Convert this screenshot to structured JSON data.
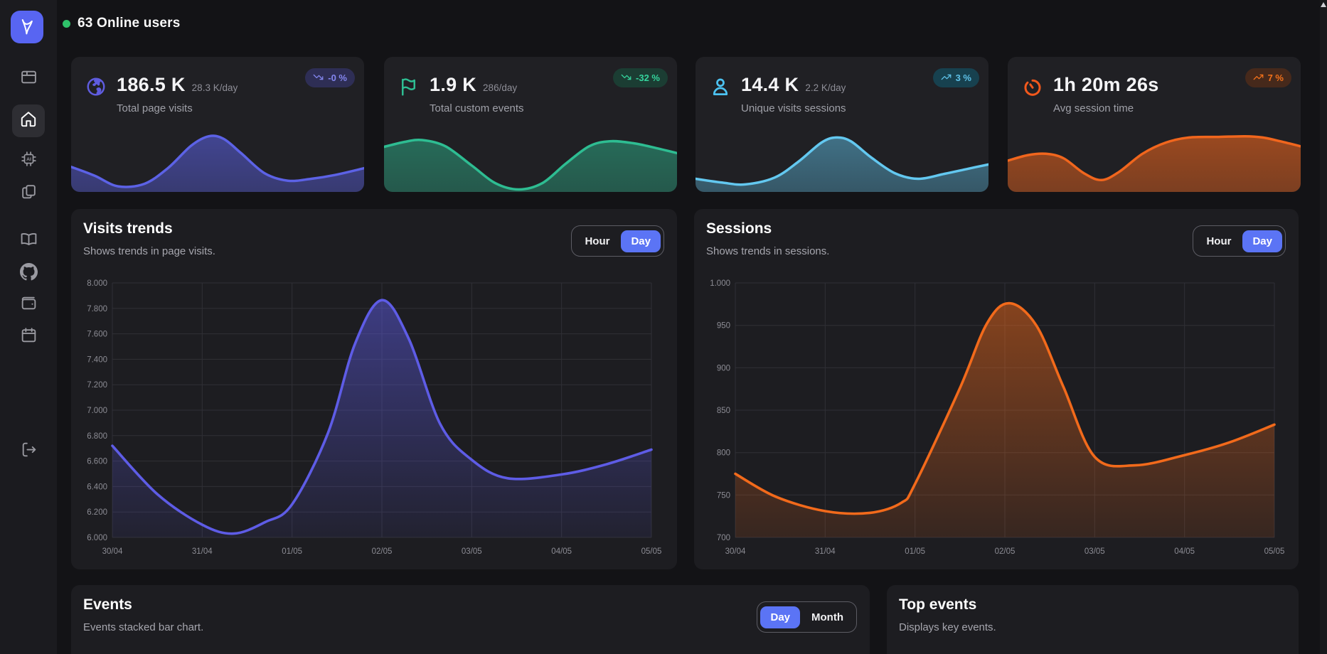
{
  "header": {
    "online_users": "63 Online users",
    "status_color": "#2fc26a"
  },
  "sidebar": {
    "logo_icon": "swoosh-logo-icon",
    "logo_bg": "#5865f2",
    "ai_label": "AI",
    "items": [
      {
        "name": "dashboard",
        "icon": "browser-window-icon",
        "active": false
      },
      {
        "name": "home",
        "icon": "home-icon",
        "active": true
      },
      {
        "name": "ai",
        "icon": "ai-chip-icon",
        "active": false
      },
      {
        "name": "pages",
        "icon": "copy-pages-icon",
        "active": false
      },
      {
        "name": "docs",
        "icon": "book-icon",
        "active": false
      },
      {
        "name": "github",
        "icon": "github-icon",
        "active": false
      },
      {
        "name": "billing",
        "icon": "wallet-icon",
        "active": false
      },
      {
        "name": "calendar",
        "icon": "calendar-icon",
        "active": false
      },
      {
        "name": "logout",
        "icon": "logout-icon",
        "active": false
      }
    ]
  },
  "stat_cards": [
    {
      "icon": "globe-icon",
      "accent": "#5f5cdf",
      "value": "186.5 K",
      "rate": "28.3 K/day",
      "label": "Total page visits",
      "badge": {
        "icon": "trend-down-icon",
        "text": "-0 %",
        "bg": "#2e2e55",
        "fg": "#8487f0"
      },
      "spark": {
        "line": "#5c62e6",
        "fill_top": "rgba(92,98,230,0.58)",
        "fill_bottom": "rgba(92,98,230,0.40)",
        "points": [
          [
            0,
            60
          ],
          [
            8,
            74
          ],
          [
            16,
            91
          ],
          [
            25,
            87
          ],
          [
            33,
            62
          ],
          [
            41,
            26
          ],
          [
            47,
            11
          ],
          [
            52,
            15
          ],
          [
            58,
            38
          ],
          [
            66,
            70
          ],
          [
            74,
            82
          ],
          [
            82,
            79
          ],
          [
            90,
            73
          ],
          [
            100,
            62
          ]
        ]
      }
    },
    {
      "icon": "flag-icon",
      "accent": "#2ebd92",
      "value": "1.9 K",
      "rate": "286/day",
      "label": "Total custom events",
      "badge": {
        "icon": "trend-down-icon",
        "text": "-32 %",
        "bg": "#1b3d33",
        "fg": "#35d49d"
      },
      "spark": {
        "line": "#2ebd92",
        "fill_top": "rgba(46,189,146,0.50)",
        "fill_bottom": "rgba(46,189,146,0.36)",
        "points": [
          [
            0,
            28
          ],
          [
            7,
            20
          ],
          [
            13,
            17
          ],
          [
            21,
            27
          ],
          [
            30,
            58
          ],
          [
            38,
            86
          ],
          [
            46,
            96
          ],
          [
            54,
            86
          ],
          [
            62,
            55
          ],
          [
            70,
            27
          ],
          [
            77,
            19
          ],
          [
            85,
            22
          ],
          [
            93,
            30
          ],
          [
            100,
            38
          ]
        ]
      }
    },
    {
      "icon": "user-icon",
      "accent": "#4cc2f1",
      "value": "14.4 K",
      "rate": "2.2 K/day",
      "label": "Unique visits sessions",
      "badge": {
        "icon": "trend-up-icon",
        "text": "3 %",
        "bg": "#17414f",
        "fg": "#5ec1e8"
      },
      "spark": {
        "line": "#63c8f0",
        "fill_top": "rgba(99,200,240,0.50)",
        "fill_bottom": "rgba(99,200,240,0.33)",
        "points": [
          [
            0,
            79
          ],
          [
            9,
            85
          ],
          [
            17,
            88
          ],
          [
            27,
            77
          ],
          [
            35,
            52
          ],
          [
            43,
            21
          ],
          [
            48,
            13
          ],
          [
            53,
            19
          ],
          [
            60,
            45
          ],
          [
            68,
            70
          ],
          [
            76,
            79
          ],
          [
            85,
            71
          ],
          [
            93,
            63
          ],
          [
            100,
            56
          ]
        ]
      }
    },
    {
      "icon": "timer-icon",
      "accent": "#f2581c",
      "value": "1h 20m 26s",
      "rate": "",
      "label": "Avg session time",
      "badge": {
        "icon": "trend-up-icon",
        "text": "7 %",
        "bg": "#46291b",
        "fg": "#f4721b"
      },
      "spark": {
        "line": "#f1661d",
        "fill_top": "rgba(241,102,29,0.60)",
        "fill_bottom": "rgba(241,102,29,0.44)",
        "points": [
          [
            0,
            50
          ],
          [
            7,
            41
          ],
          [
            13,
            39
          ],
          [
            19,
            46
          ],
          [
            26,
            70
          ],
          [
            32,
            81
          ],
          [
            38,
            68
          ],
          [
            46,
            39
          ],
          [
            54,
            21
          ],
          [
            62,
            13
          ],
          [
            72,
            12
          ],
          [
            81,
            11
          ],
          [
            87,
            13
          ],
          [
            93,
            19
          ],
          [
            100,
            27
          ]
        ]
      }
    }
  ],
  "panels": {
    "visits": {
      "title": "Visits trends",
      "subtitle": "Shows trends in page visits.",
      "toggle": {
        "options": [
          "Hour",
          "Day"
        ],
        "active": "Day"
      }
    },
    "sessions": {
      "title": "Sessions",
      "subtitle": "Shows trends in sessions.",
      "toggle": {
        "options": [
          "Hour",
          "Day"
        ],
        "active": "Day"
      }
    },
    "events": {
      "title": "Events",
      "subtitle": "Events stacked bar chart.",
      "toggle": {
        "options": [
          "Day",
          "Month"
        ],
        "active": "Day"
      }
    },
    "top_events": {
      "title": "Top events",
      "subtitle": "Displays key events."
    }
  },
  "colors": {
    "accent_blue": "#5b74f5",
    "grid_line": "#303036",
    "tick_text": "#8c8c94"
  },
  "chart_data": [
    {
      "id": "visits_trends",
      "type": "area",
      "title": "Visits trends",
      "x_labels": [
        "30/04",
        "31/04",
        "01/05",
        "02/05",
        "03/05",
        "04/05",
        "05/05"
      ],
      "ylim": [
        6000,
        8000
      ],
      "y_step": 200,
      "y_tick_labels": [
        "8.000",
        "7.800",
        "7.600",
        "7.400",
        "7.200",
        "7.000",
        "6.800",
        "6.600",
        "6.400",
        "6.200",
        "6.000"
      ],
      "grid": true,
      "legend": "none",
      "line_color": "#5e5ce6",
      "fill_from": "rgba(94,92,230,0.52)",
      "fill_to": "rgba(94,92,230,0.08)",
      "points": [
        [
          0,
          6720
        ],
        [
          0.5,
          6340
        ],
        [
          1,
          6100
        ],
        [
          1.35,
          6030
        ],
        [
          1.7,
          6120
        ],
        [
          2,
          6260
        ],
        [
          2.4,
          6820
        ],
        [
          2.7,
          7520
        ],
        [
          3,
          7865
        ],
        [
          3.3,
          7560
        ],
        [
          3.65,
          6890
        ],
        [
          4,
          6610
        ],
        [
          4.4,
          6465
        ],
        [
          5,
          6495
        ],
        [
          5.5,
          6575
        ],
        [
          6,
          6690
        ]
      ]
    },
    {
      "id": "sessions",
      "type": "area",
      "title": "Sessions",
      "x_labels": [
        "30/04",
        "31/04",
        "01/05",
        "02/05",
        "03/05",
        "04/05",
        "05/05"
      ],
      "ylim": [
        700,
        1000
      ],
      "y_step": 50,
      "y_tick_labels": [
        "1.000",
        "950",
        "900",
        "850",
        "800",
        "750",
        "700"
      ],
      "grid": true,
      "legend": "none",
      "line_color": "#f26a1b",
      "fill_from": "rgba(242,106,27,0.52)",
      "fill_to": "rgba(242,106,27,0.12)",
      "points": [
        [
          0,
          775
        ],
        [
          0.45,
          748
        ],
        [
          1,
          731
        ],
        [
          1.5,
          729
        ],
        [
          1.85,
          741
        ],
        [
          2,
          763
        ],
        [
          2.5,
          876
        ],
        [
          2.8,
          952
        ],
        [
          3.05,
          976
        ],
        [
          3.35,
          950
        ],
        [
          3.65,
          878
        ],
        [
          4,
          795
        ],
        [
          4.45,
          785
        ],
        [
          5,
          797
        ],
        [
          5.5,
          812
        ],
        [
          6,
          833
        ]
      ]
    }
  ]
}
